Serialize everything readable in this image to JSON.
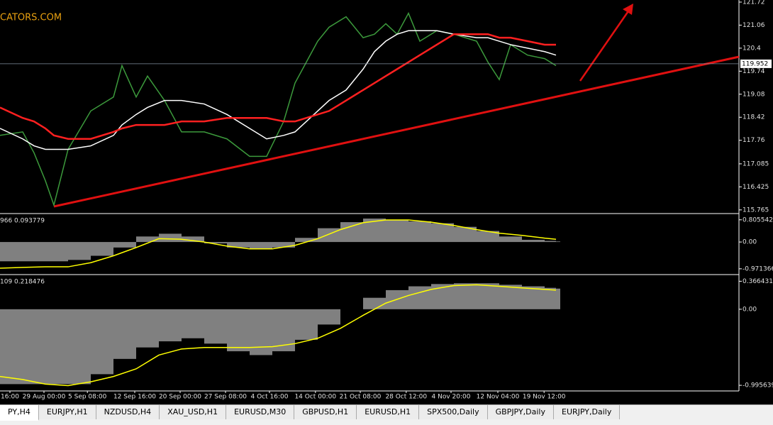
{
  "watermark": "CATORS.COM",
  "tabs": [
    "PY,H4",
    "EURJPY,H1",
    "NZDUSD,H4",
    "XAU_USD,H1",
    "EURUSD,M30",
    "GBPUSD,H1",
    "EURUSD,H1",
    "SPX500,Daily",
    "GBPJPY,Daily",
    "EURJPY,Daily"
  ],
  "chart_data": [
    {
      "type": "line",
      "xlim": [
        0,
        130
      ],
      "x": [
        0,
        4,
        6,
        8,
        9.5,
        12,
        16,
        20,
        21.5,
        24,
        26,
        29,
        32,
        36,
        40,
        44,
        47,
        50,
        52,
        54,
        56,
        58,
        61,
        64,
        66,
        68,
        70,
        72,
        74,
        77,
        80,
        84,
        86,
        88,
        90,
        93,
        96,
        98
      ],
      "series": [
        {
          "color": "#3c9a3c",
          "values": [
            117.9,
            118.0,
            117.4,
            116.6,
            115.9,
            117.5,
            118.6,
            119.0,
            119.9,
            119.0,
            119.6,
            118.9,
            118.0,
            118.0,
            117.8,
            117.3,
            117.3,
            118.3,
            119.4,
            120.0,
            120.6,
            121.0,
            121.3,
            120.7,
            120.8,
            121.1,
            120.8,
            121.4,
            120.6,
            120.9,
            120.8,
            120.6,
            120.0,
            119.5,
            120.5,
            120.2,
            120.1,
            119.9
          ]
        },
        {
          "color": "#ffffff",
          "values": [
            118.1,
            117.8,
            117.6,
            117.5,
            117.5,
            117.5,
            117.6,
            117.9,
            118.2,
            118.5,
            118.7,
            118.9,
            118.9,
            118.8,
            118.5,
            118.1,
            117.8,
            117.9,
            118.0,
            118.3,
            118.6,
            118.9,
            119.2,
            119.8,
            120.3,
            120.6,
            120.8,
            120.9,
            120.9,
            120.9,
            120.8,
            120.7,
            120.7,
            120.6,
            120.5,
            120.4,
            120.3,
            120.2
          ]
        },
        {
          "color": "#ff2020",
          "values": [
            118.7,
            118.4,
            118.3,
            118.1,
            117.9,
            117.8,
            117.8,
            118.0,
            118.1,
            118.2,
            118.2,
            118.2,
            118.3,
            118.3,
            118.4,
            118.4,
            118.4,
            118.3,
            118.3,
            118.4,
            118.5,
            118.6,
            118.9,
            119.2,
            119.4,
            119.6,
            119.8,
            120.0,
            120.2,
            120.5,
            120.8,
            120.8,
            120.8,
            120.7,
            120.7,
            120.6,
            120.5,
            120.5
          ]
        }
      ],
      "ylim": [
        115.68,
        121.78
      ],
      "yticks": [
        121.72,
        121.06,
        120.4,
        119.74,
        119.08,
        118.42,
        117.76,
        117.085,
        116.425,
        115.765
      ],
      "current_price": 119.952
    },
    {
      "type": "combo",
      "subtitle": "966 0.093779",
      "xlim": [
        0,
        130
      ],
      "x": [
        0,
        4,
        8,
        12,
        16,
        20,
        24,
        28,
        32,
        36,
        40,
        44,
        48,
        52,
        56,
        60,
        64,
        68,
        72,
        76,
        80,
        84,
        88,
        92,
        96,
        98
      ],
      "series": [
        {
          "type": "bar",
          "color": "#808080",
          "values": [
            -0.7,
            -0.7,
            -0.7,
            -0.65,
            -0.5,
            -0.2,
            0.2,
            0.3,
            0.2,
            -0.05,
            -0.2,
            -0.25,
            -0.2,
            0.15,
            0.5,
            0.72,
            0.85,
            0.8,
            0.75,
            0.68,
            0.55,
            0.4,
            0.2,
            0.08,
            0.04,
            0.02
          ]
        },
        {
          "type": "line",
          "color": "#ffff00",
          "values": [
            -0.95,
            -0.92,
            -0.9,
            -0.9,
            -0.75,
            -0.5,
            -0.2,
            0.12,
            0.1,
            0.0,
            -0.15,
            -0.25,
            -0.25,
            -0.12,
            0.12,
            0.45,
            0.7,
            0.8,
            0.8,
            0.72,
            0.6,
            0.45,
            0.32,
            0.24,
            0.14,
            0.1
          ]
        }
      ],
      "ylim": [
        -1.13,
        0.98
      ],
      "yticks": [
        0.805542,
        {
          "value": 0,
          "label": "0.00"
        },
        -0.971366
      ]
    },
    {
      "type": "combo",
      "subtitle": "109 0.218476",
      "xlim": [
        0,
        130
      ],
      "x": [
        0,
        4,
        8,
        12,
        16,
        20,
        24,
        28,
        32,
        36,
        40,
        44,
        48,
        52,
        56,
        60,
        64,
        68,
        72,
        76,
        80,
        84,
        88,
        92,
        96,
        98
      ],
      "series": [
        {
          "type": "bar",
          "color": "#808080",
          "values": [
            -0.98,
            -0.98,
            -0.98,
            -0.98,
            -0.85,
            -0.65,
            -0.5,
            -0.42,
            -0.38,
            -0.45,
            -0.55,
            -0.6,
            -0.55,
            -0.4,
            -0.2,
            0.0,
            0.15,
            0.25,
            0.3,
            0.33,
            0.34,
            0.34,
            0.32,
            0.3,
            0.28,
            0.27
          ]
        },
        {
          "type": "line",
          "color": "#ffff00",
          "values": [
            -0.88,
            -0.92,
            -0.98,
            -1.0,
            -0.95,
            -0.88,
            -0.78,
            -0.6,
            -0.52,
            -0.5,
            -0.5,
            -0.5,
            -0.49,
            -0.45,
            -0.38,
            -0.25,
            -0.08,
            0.08,
            0.18,
            0.26,
            0.31,
            0.32,
            0.3,
            0.28,
            0.26,
            0.25
          ]
        }
      ],
      "ylim": [
        -1.06,
        0.435
      ],
      "yticks": [
        0.366431,
        {
          "value": 0,
          "label": "0.00"
        },
        -0.995639
      ],
      "xticks": [
        {
          "value": 1.75,
          "label": "16:00"
        },
        {
          "value": 7.75,
          "label": "29 Aug 00:00"
        },
        {
          "value": 15.4,
          "label": "5 Sep 08:00"
        },
        {
          "value": 23.75,
          "label": "12 Sep 16:00"
        },
        {
          "value": 31.75,
          "label": "20 Sep 00:00"
        },
        {
          "value": 39.75,
          "label": "27 Sep 08:00"
        },
        {
          "value": 47.5,
          "label": "4 Oct 16:00"
        },
        {
          "value": 55.6,
          "label": "14 Oct 00:00"
        },
        {
          "value": 63.5,
          "label": "21 Oct 08:00"
        },
        {
          "value": 71.6,
          "label": "28 Oct 12:00"
        },
        {
          "value": 79.5,
          "label": "4 Nov 20:00"
        },
        {
          "value": 87.75,
          "label": "12 Nov 04:00"
        },
        {
          "value": 95.9,
          "label": "19 Nov 12:00"
        }
      ]
    }
  ]
}
